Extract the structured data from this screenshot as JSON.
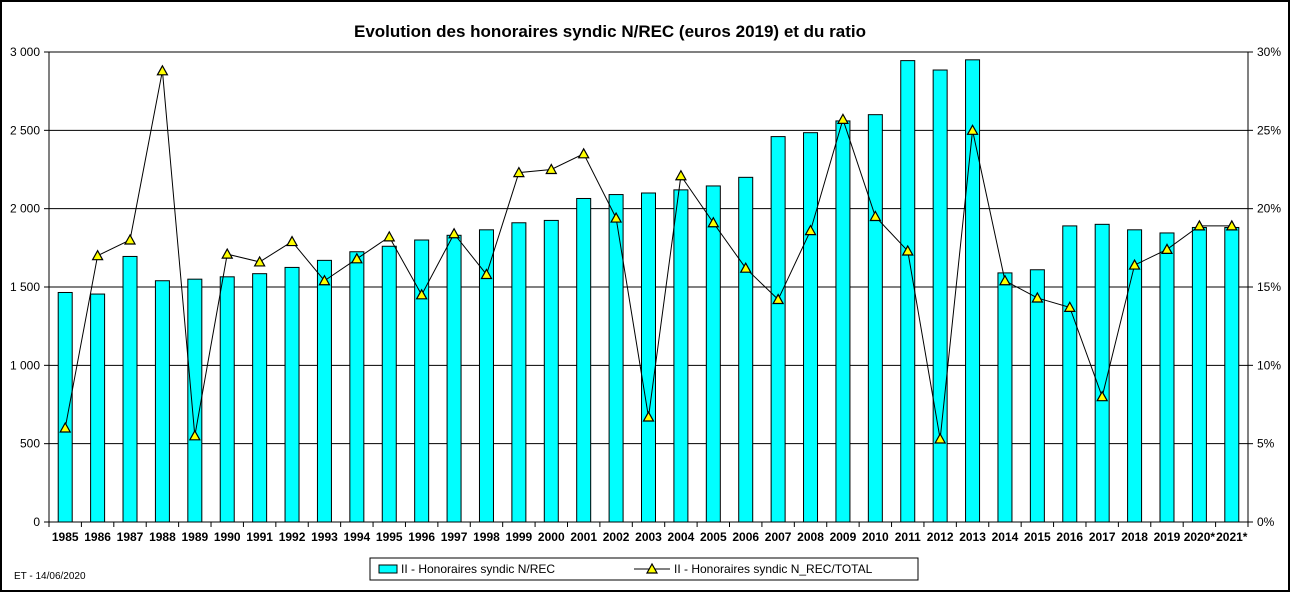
{
  "chart_data": {
    "type": "bar",
    "title": "Evolution des honoraires syndic N/REC (euros 2019) et du ratio",
    "categories": [
      "1985",
      "1986",
      "1987",
      "1988",
      "1989",
      "1990",
      "1991",
      "1992",
      "1993",
      "1994",
      "1995",
      "1996",
      "1997",
      "1998",
      "1999",
      "2000",
      "2001",
      "2002",
      "2003",
      "2004",
      "2005",
      "2006",
      "2007",
      "2008",
      "2009",
      "2010",
      "2011",
      "2012",
      "2013",
      "2014",
      "2015",
      "2016",
      "2017",
      "2018",
      "2019",
      "2020*",
      "2021*"
    ],
    "series": [
      {
        "name": "II - Honoraires syndic N/REC",
        "kind": "bar",
        "axis": "left",
        "color": "#00FFFF",
        "values": [
          1465,
          1455,
          1695,
          1540,
          1550,
          1565,
          1585,
          1625,
          1670,
          1725,
          1760,
          1800,
          1830,
          1865,
          1910,
          1925,
          2065,
          2090,
          2100,
          2120,
          2145,
          2200,
          2460,
          2485,
          2560,
          2600,
          2945,
          2885,
          2950,
          1590,
          1610,
          1890,
          1900,
          1865,
          1845,
          1880,
          1880
        ]
      },
      {
        "name": "II - Honoraires syndic N_REC/TOTAL",
        "kind": "line",
        "axis": "right",
        "color": "#000000",
        "marker_color": "#FFFF00",
        "values": [
          6.0,
          17.0,
          18.0,
          28.8,
          5.5,
          17.1,
          16.6,
          17.9,
          15.4,
          16.8,
          18.2,
          14.5,
          18.4,
          15.8,
          22.3,
          22.5,
          23.5,
          19.4,
          6.7,
          22.1,
          19.1,
          16.2,
          14.2,
          18.6,
          25.7,
          19.5,
          17.3,
          5.3,
          25.0,
          15.4,
          14.3,
          13.7,
          8.0,
          16.4,
          17.4,
          18.9,
          18.9
        ]
      }
    ],
    "y_left": {
      "min": 0,
      "max": 3000,
      "step": 500,
      "tick_labels": [
        "0",
        "500",
        "1 000",
        "1 500",
        "2 000",
        "2 500",
        "3 000"
      ]
    },
    "y_right": {
      "min": 0,
      "max": 30,
      "step": 5,
      "tick_labels": [
        "0%",
        "5%",
        "10%",
        "15%",
        "20%",
        "25%",
        "30%"
      ]
    },
    "grid": "horizontal",
    "legend_position": "bottom"
  },
  "footnote": "ET -  14/06/2020"
}
